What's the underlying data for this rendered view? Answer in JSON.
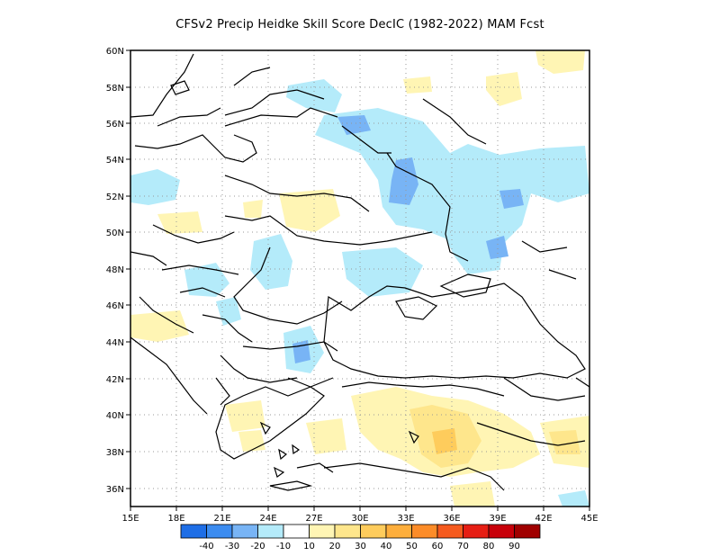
{
  "map": {
    "title": "CFSv2 Precip Heidke Skill Score DecIC (1982-2022) MAM Fcst",
    "lon_labels": [
      "15E",
      "18E",
      "21E",
      "24E",
      "27E",
      "30E",
      "33E",
      "36E",
      "39E",
      "42E",
      "45E"
    ],
    "lat_labels": [
      "60N",
      "58N",
      "56N",
      "54N",
      "52N",
      "50N",
      "48N",
      "46N",
      "44N",
      "42N",
      "40N",
      "38N",
      "36N"
    ],
    "lon_range": [
      15,
      45
    ],
    "lat_range": [
      35,
      60
    ],
    "grid": "dotted",
    "colorbar": {
      "labels": [
        "-40",
        "-30",
        "-20",
        "-10",
        "10",
        "20",
        "30",
        "40",
        "50",
        "60",
        "70",
        "80",
        "90"
      ],
      "colors": [
        "#1e6ee6",
        "#3c8cf0",
        "#78b4f5",
        "#b4ebfa",
        "#ffffff",
        "#fff5b4",
        "#fee68c",
        "#fecc5c",
        "#fdae3c",
        "#fc8c28",
        "#f55a1e",
        "#e61e14",
        "#c8000a",
        "#a00000"
      ]
    }
  }
}
